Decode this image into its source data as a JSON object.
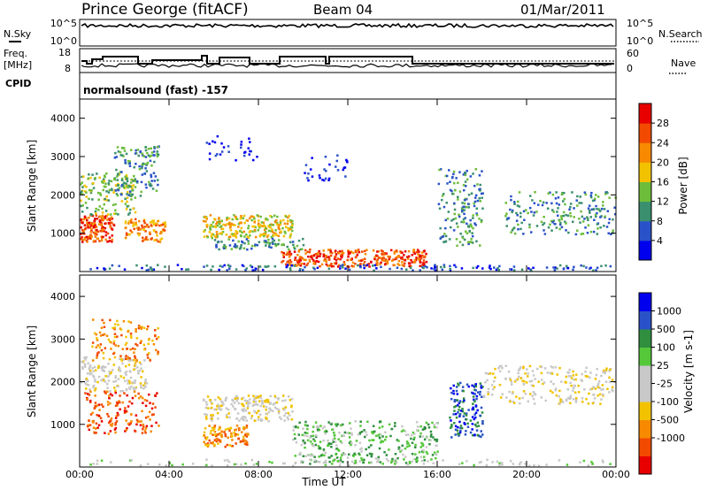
{
  "header": {
    "station": "Prince George (fitACF)",
    "beam": "Beam 04",
    "date": "01/Mar/2011"
  },
  "strips": {
    "nsky_label": "N.Sky",
    "nsky_ticks": [
      "10^5",
      "10^0"
    ],
    "nsearch_label": "N.Search",
    "nsearch_ticks": [
      "10^5",
      "10^0"
    ],
    "freq_label_1": "Freq.",
    "freq_label_2": "[MHz]",
    "freq_ticks": [
      "18",
      "8"
    ],
    "nave_label": "Nave",
    "nave_ticks": [
      "60",
      "0"
    ],
    "cpid_label": "CPID",
    "cpid_text": "normalsound (fast) -157"
  },
  "colors": {
    "power": [
      "#0000ee",
      "#2a52c8",
      "#3a8f6e",
      "#6dbd3a",
      "#f2c200",
      "#f78a00",
      "#f24a00",
      "#e80000"
    ],
    "velocity": [
      "#e80000",
      "#f24a00",
      "#f78a00",
      "#f2c200",
      "#c8c8c8",
      "#c8c8c8",
      "#55c83a",
      "#2f8f3f",
      "#2a52c8",
      "#0000ee"
    ]
  },
  "chart_data": [
    {
      "type": "heatmap",
      "title": "Power",
      "ylabel": "Slant Range [km]",
      "xlabel": "Time UT",
      "y_ticks": [
        "1000",
        "2000",
        "3000",
        "4000"
      ],
      "ylim": [
        0,
        4500
      ],
      "xlim_hours": [
        0,
        24
      ],
      "colorbar_label": "Power [dB]",
      "colorbar_ticks": [
        "4",
        "8",
        "12",
        "16",
        "20",
        "24",
        "28"
      ],
      "colorbar_range": [
        0,
        32
      ]
    },
    {
      "type": "heatmap",
      "title": "Velocity",
      "ylabel": "Slant Range [km]",
      "xlabel": "Time UT",
      "y_ticks": [
        "1000",
        "2000",
        "3000",
        "4000"
      ],
      "ylim": [
        0,
        4500
      ],
      "xlim_hours": [
        0,
        24
      ],
      "x_ticks": [
        "00:00",
        "04:00",
        "08:00",
        "12:00",
        "16:00",
        "20:00",
        "00:00"
      ],
      "colorbar_label": "Velocity [m s-1]",
      "colorbar_ticks": [
        "1000",
        "500",
        "100",
        "25",
        "-25",
        "-100",
        "-500",
        "-1000"
      ],
      "colorbar_range": [
        -1000,
        1000
      ]
    }
  ]
}
